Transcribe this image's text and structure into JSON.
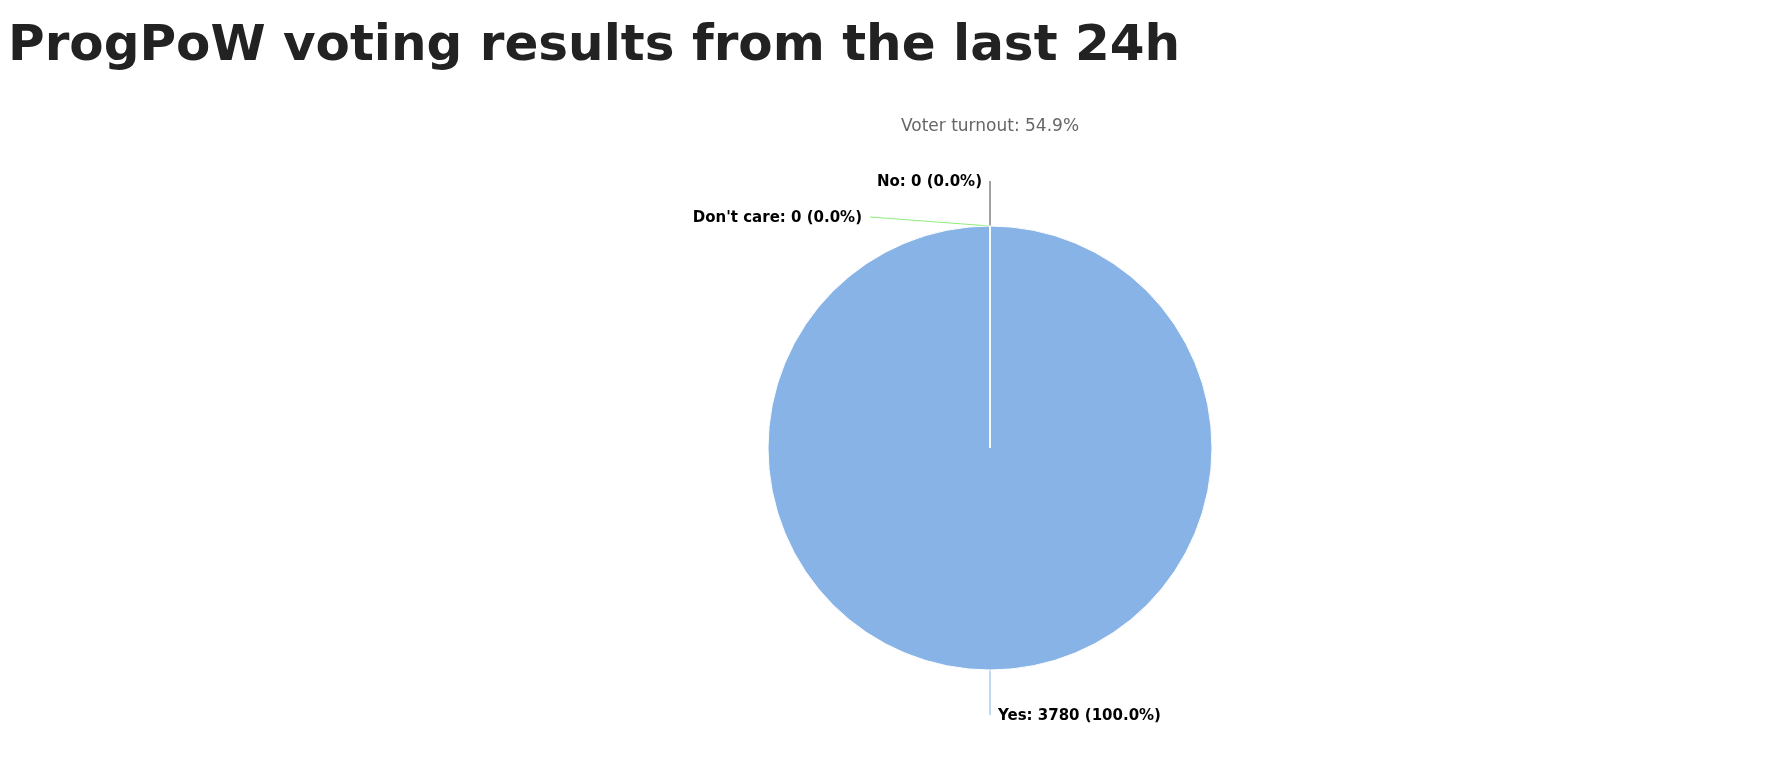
{
  "chart_data": {
    "type": "pie",
    "title": "ProgPoW voting results from the last 24h",
    "subtitle": "Voter turnout: 54.9%",
    "categories": [
      "Yes",
      "No",
      "Don't care"
    ],
    "values": [
      3780,
      0,
      0
    ],
    "colors": [
      "#87b3e6",
      "#434348",
      "#90ed7d"
    ],
    "value_labels": [
      ": 3780 (100.0%)",
      ": 0 (0.0%)",
      ": 0 (0.0%)"
    ]
  }
}
